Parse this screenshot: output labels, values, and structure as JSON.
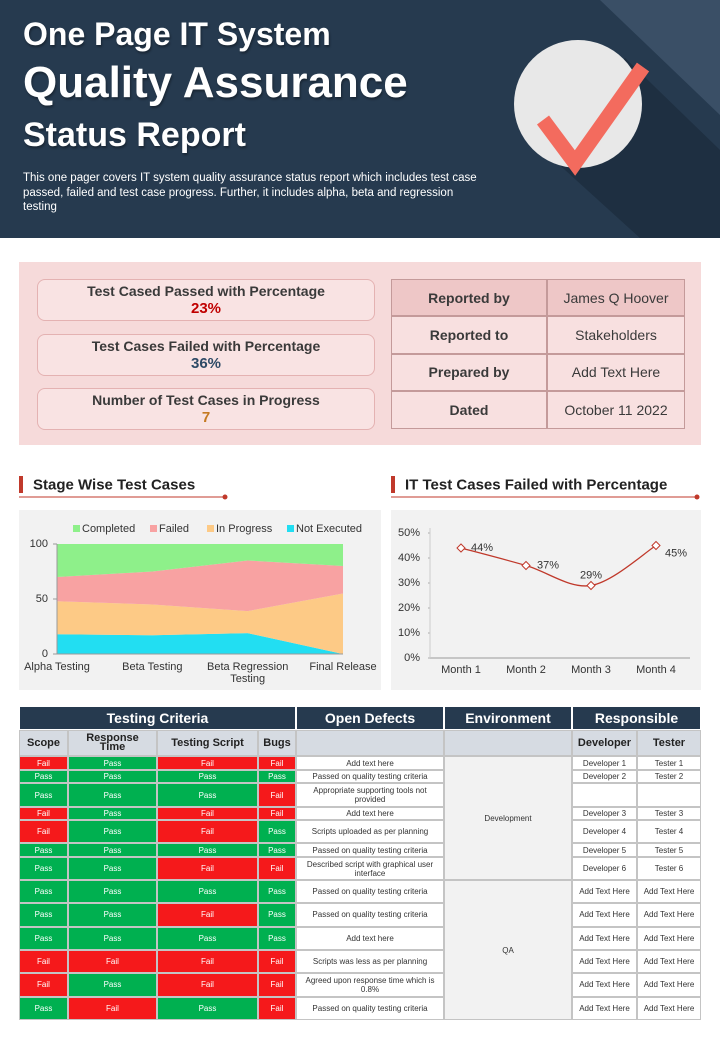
{
  "header": {
    "title_lines": [
      "One Page IT System",
      "Quality Assurance",
      "Status Report"
    ],
    "description": "This one pager covers IT system quality assurance status report which includes test case passed, failed and test case progress.  Further, it includes alpha, beta and regression testing"
  },
  "summary": {
    "items": [
      {
        "label": "Test Cased Passed with Percentage",
        "value": "23%"
      },
      {
        "label": "Test Cases Failed with Percentage",
        "value": "36%"
      },
      {
        "label": "Number of Test Cases in Progress",
        "value": "7"
      }
    ],
    "info": [
      [
        "Reported by",
        "James Q Hoover"
      ],
      [
        "Reported to",
        "Stakeholders"
      ],
      [
        "Prepared by",
        "Add Text Here"
      ],
      [
        "Dated",
        "October 11 2022"
      ]
    ]
  },
  "chart_data": [
    {
      "type": "area",
      "stacked": true,
      "title": "Stage Wise Test Cases",
      "categories": [
        "Alpha Testing",
        "Beta Testing",
        "Beta Regression Testing",
        "Final Release"
      ],
      "series": [
        {
          "name": "Completed",
          "color": "#8ef08a",
          "values": [
            30,
            25,
            15,
            20
          ]
        },
        {
          "name": "Failed",
          "color": "#f8a2a2",
          "values": [
            22,
            30,
            46,
            25
          ]
        },
        {
          "name": "In Progress",
          "color": "#fdca86",
          "values": [
            30,
            28,
            20,
            55
          ]
        },
        {
          "name": "Not Executed",
          "color": "#22def2",
          "values": [
            18,
            17,
            19,
            0
          ]
        }
      ],
      "ylim": [
        0,
        100
      ],
      "yticks": [
        0,
        50,
        100
      ],
      "legend": "top"
    },
    {
      "type": "line",
      "title": "IT Test Cases Failed with Percentage",
      "categories": [
        "Month 1",
        "Month 2",
        "Month 3",
        "Month 4"
      ],
      "values": [
        44,
        37,
        29,
        45
      ],
      "value_labels": [
        "44%",
        "37%",
        "29%",
        "45%"
      ],
      "color": "#c0392b",
      "ylim": [
        0,
        50
      ],
      "yticks": [
        {
          "value": 0,
          "label": "0%"
        },
        {
          "value": 10,
          "label": "10%"
        },
        {
          "value": 20,
          "label": "20%"
        },
        {
          "value": 30,
          "label": "30%"
        },
        {
          "value": 40,
          "label": "40%"
        },
        {
          "value": 50,
          "label": "50%"
        }
      ]
    }
  ],
  "table": {
    "groups": [
      "Testing Criteria",
      "Open Defects",
      "Environment",
      "Responsible"
    ],
    "sub_headers": [
      "Scope",
      "Response Time",
      "Testing Script",
      "Bugs",
      "Developer",
      "Tester"
    ],
    "status_colors": {
      "Pass": "#00b050",
      "Fail": "#f5191b"
    },
    "environments": [
      "Development",
      "QA"
    ],
    "rows": [
      [
        "Fail",
        "Pass",
        "Fail",
        "Fail",
        "Add text here",
        "Developer 1",
        "Tester 1"
      ],
      [
        "Pass",
        "Pass",
        "Pass",
        "Pass",
        "Passed on quality testing criteria",
        "Developer 2",
        "Tester 2"
      ],
      [
        "Pass",
        "Pass",
        "Pass",
        "Fail",
        "Appropriate supporting tools not provided",
        null,
        null
      ],
      [
        "Fail",
        "Pass",
        "Fail",
        "Fail",
        "Add text here",
        "Developer 3",
        "Tester 3"
      ],
      [
        "Fail",
        "Pass",
        "Fail",
        "Pass",
        "Scripts uploaded as per planning",
        "Developer 4",
        "Tester 4"
      ],
      [
        "Pass",
        "Pass",
        "Pass",
        "Pass",
        "Passed on quality testing criteria",
        "Developer 5",
        "Tester 5"
      ],
      [
        "Pass",
        "Pass",
        "Fail",
        "Fail",
        "Described script with graphical user interface",
        "Developer 6",
        "Tester 6"
      ],
      [
        "Pass",
        "Pass",
        "Pass",
        "Pass",
        "Passed on quality testing criteria",
        "Add Text Here",
        "Add Text Here"
      ],
      [
        "Pass",
        "Pass",
        "Fail",
        "Pass",
        "Passed on quality testing criteria",
        "Add Text Here",
        "Add Text Here"
      ],
      [
        "Pass",
        "Pass",
        "Pass",
        "Pass",
        "Add text here",
        "Add Text Here",
        "Add Text Here"
      ],
      [
        "Fail",
        "Fail",
        "Fail",
        "Fail",
        "Scripts was less as per planning",
        "Add Text Here",
        "Add Text Here"
      ],
      [
        "Fail",
        "Pass",
        "Fail",
        "Fail",
        "Agreed upon response time which is 0.8%",
        "Add Text Here",
        "Add Text Here"
      ],
      [
        "Pass",
        "Fail",
        "Pass",
        "Fail",
        "Passed on quality testing criteria",
        "Add Text Here",
        "Add Text Here"
      ]
    ]
  }
}
